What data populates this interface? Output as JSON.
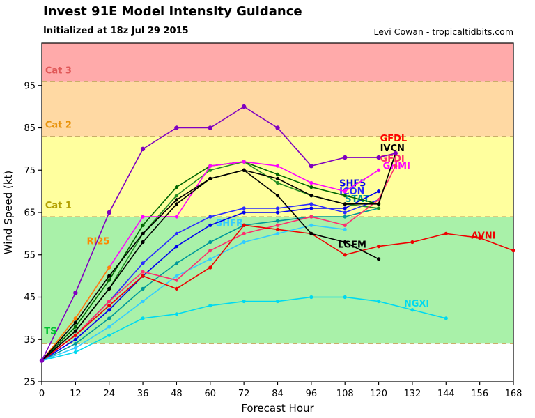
{
  "header": {
    "title": "Invest 91E Model Intensity Guidance",
    "subtitle": "Initialized at 18z Jul 29 2015",
    "credit": "Levi Cowan - tropicaltidbits.com"
  },
  "chart_data": {
    "type": "line",
    "title": "Invest 91E Model Intensity Guidance",
    "xlabel": "Forecast Hour",
    "ylabel": "Wind Speed (kt)",
    "xlim": [
      0,
      168
    ],
    "ylim": [
      25,
      105
    ],
    "xticks": [
      0,
      12,
      24,
      36,
      48,
      60,
      72,
      84,
      96,
      108,
      120,
      132,
      144,
      156,
      168
    ],
    "yticks": [
      25,
      35,
      45,
      55,
      65,
      75,
      85,
      95
    ],
    "grid": false,
    "threshold_color": "#c9ae6a",
    "thresholds": [
      34,
      64,
      83,
      96
    ],
    "bands": [
      {
        "label_text": "TS",
        "from": 34,
        "to": 64,
        "color": "#a9f1a9",
        "label_color": "#00c030",
        "label_x": 0.8,
        "label_y": 36.3
      },
      {
        "label_text": "Cat 1",
        "from": 64,
        "to": 83,
        "color": "#ffff9e",
        "label_color": "#b3a000",
        "label_x": 1.2,
        "label_y": 66.0
      },
      {
        "label_text": "Cat 2",
        "from": 83,
        "to": 96,
        "color": "#ffd9a3",
        "label_color": "#e8920a",
        "label_x": 1.2,
        "label_y": 85.0
      },
      {
        "label_text": "Cat 3",
        "from": 96,
        "to": 105,
        "color": "#ffaaaa",
        "label_color": "#e05858",
        "label_x": 1.2,
        "label_y": 97.8
      }
    ],
    "series": [
      {
        "name": "STAT",
        "color": "#009999",
        "marker_r": 2.6,
        "x": [
          0,
          12,
          24,
          36,
          48,
          60,
          72,
          84,
          96,
          108,
          120
        ],
        "y": [
          30,
          34,
          40,
          47,
          53,
          58,
          62,
          63,
          64,
          64,
          66
        ],
        "label": {
          "text": "STAT",
          "x": 108,
          "y": 67.5,
          "color": "#009999"
        }
      },
      {
        "name": "SHFR",
        "color": "#33ccff",
        "marker_r": 2.6,
        "x": [
          0,
          12,
          24,
          36,
          48,
          60,
          72,
          84,
          96,
          108
        ],
        "y": [
          30,
          33,
          38,
          44,
          50,
          54,
          58,
          60,
          62,
          61
        ],
        "label": {
          "text": "SHFR",
          "x": 62,
          "y": 61.8,
          "color": "#33ccff"
        }
      },
      {
        "name": "NGXI",
        "color": "#00d9f0",
        "marker_r": 2.6,
        "x": [
          0,
          12,
          24,
          36,
          48,
          60,
          72,
          84,
          96,
          108,
          120,
          132,
          144
        ],
        "y": [
          30,
          32,
          36,
          40,
          41,
          43,
          44,
          44,
          45,
          45,
          44,
          42,
          40
        ],
        "label": {
          "text": "NGXI",
          "x": 129,
          "y": 42.8,
          "color": "#00d9f0"
        }
      },
      {
        "name": "SHF5",
        "color": "#0000ee",
        "marker_r": 2.6,
        "x": [
          0,
          12,
          24,
          36,
          48,
          60,
          72,
          84,
          96,
          108,
          120
        ],
        "y": [
          30,
          35,
          42,
          50,
          57,
          62,
          65,
          65,
          66,
          66,
          70
        ],
        "label": {
          "text": "SHF5",
          "x": 106,
          "y": 71.2,
          "color": "#0000ee"
        }
      },
      {
        "name": "ICON",
        "color": "#2a2aff",
        "marker_r": 2.6,
        "x": [
          0,
          12,
          24,
          36,
          48,
          60,
          72,
          84,
          96,
          108,
          120
        ],
        "y": [
          30,
          36,
          44,
          53,
          60,
          64,
          66,
          66,
          67,
          65,
          68
        ],
        "label": {
          "text": "ICON",
          "x": 106,
          "y": 69.3,
          "color": "#2a2aff"
        }
      },
      {
        "name": "green-1",
        "color": "#006600",
        "marker_r": 2.6,
        "x": [
          0,
          12,
          24,
          36,
          48,
          60,
          72,
          84,
          96,
          108,
          120
        ],
        "y": [
          30,
          38,
          49,
          62,
          71,
          76,
          77,
          74,
          71,
          69,
          67
        ],
        "label": null
      },
      {
        "name": "green-2",
        "color": "#228b22",
        "marker_r": 2.6,
        "x": [
          0,
          12,
          24,
          36,
          48,
          60,
          72,
          84,
          96,
          108,
          120
        ],
        "y": [
          30,
          37,
          47,
          60,
          69,
          75,
          77,
          72,
          69,
          67,
          66
        ],
        "label": null
      },
      {
        "name": "GHMI",
        "color": "#ff00ff",
        "marker_r": 2.6,
        "x": [
          0,
          12,
          24,
          36,
          48,
          60,
          72,
          84,
          96,
          108,
          120
        ],
        "y": [
          30,
          40,
          52,
          64,
          64,
          76,
          77,
          76,
          72,
          70,
          75
        ],
        "label": {
          "text": "GHMI",
          "x": 121.5,
          "y": 75.3,
          "color": "#ff00ff"
        }
      },
      {
        "name": "GFDI",
        "color": "#ff2d6e",
        "marker_r": 2.6,
        "x": [
          0,
          12,
          24,
          36,
          48,
          60,
          72,
          84,
          96,
          108,
          120,
          126
        ],
        "y": [
          30,
          36,
          44,
          51,
          49,
          56,
          60,
          62,
          64,
          62,
          68,
          76
        ],
        "label": {
          "text": "GFDI",
          "x": 120.5,
          "y": 77.0,
          "color": "#ff2d6e"
        }
      },
      {
        "name": "RI25",
        "color": "#ff8800",
        "marker_r": 2.6,
        "x": [
          0,
          12,
          24
        ],
        "y": [
          30,
          40,
          52
        ],
        "label": {
          "text": "RI25",
          "x": 16,
          "y": 57.5,
          "color": "#ff8800"
        }
      },
      {
        "name": "AVNI",
        "color": "#ee0000",
        "marker_r": 2.6,
        "x": [
          0,
          12,
          24,
          36,
          48,
          60,
          72,
          84,
          96,
          108,
          120,
          132,
          144,
          156,
          168
        ],
        "y": [
          30,
          36,
          43,
          50,
          47,
          52,
          62,
          61,
          60,
          55,
          57,
          58,
          60,
          59,
          56
        ],
        "label": {
          "text": "AVNI",
          "x": 153,
          "y": 58.8,
          "color": "#ee0000"
        }
      },
      {
        "name": "LGEM",
        "color": "#000000",
        "marker_r": 2.6,
        "x": [
          0,
          12,
          24,
          36,
          48,
          60,
          72,
          84,
          96,
          108,
          120
        ],
        "y": [
          30,
          37,
          47,
          58,
          67,
          73,
          75,
          69,
          60,
          58,
          54
        ],
        "label": {
          "text": "LGEM",
          "x": 105.5,
          "y": 56.7,
          "color": "#000000"
        }
      },
      {
        "name": "IVCN",
        "color": "#000000",
        "marker_r": 2.6,
        "x": [
          0,
          12,
          24,
          36,
          48,
          60,
          72,
          84,
          96,
          108,
          120,
          126
        ],
        "y": [
          30,
          39,
          50,
          60,
          68,
          73,
          75,
          73,
          69,
          67,
          67,
          79
        ],
        "label": {
          "text": "IVCN",
          "x": 120.5,
          "y": 79.5,
          "color": "#000000"
        }
      },
      {
        "name": "GFDL",
        "color": "#8000c0",
        "marker_r": 3.2,
        "x": [
          0,
          12,
          24,
          36,
          48,
          60,
          72,
          84,
          96,
          108,
          120,
          126
        ],
        "y": [
          30,
          46,
          65,
          80,
          85,
          85,
          90,
          85,
          76,
          78,
          78,
          79
        ],
        "label": {
          "text": "GFDL",
          "x": 120.5,
          "y": 81.8,
          "color": "#ff0000"
        }
      }
    ]
  }
}
